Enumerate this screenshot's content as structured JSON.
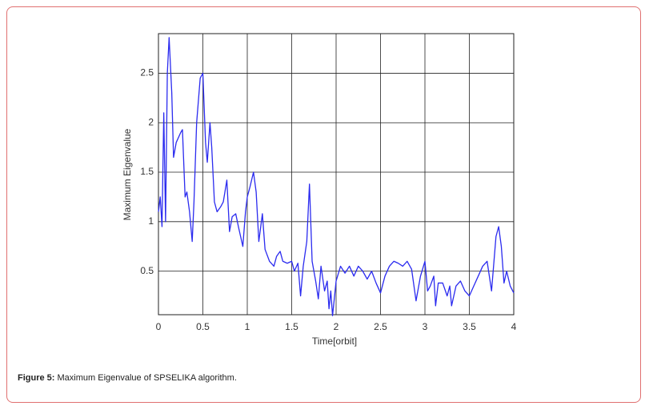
{
  "chart_data": {
    "type": "line",
    "xlabel": "Time[orbit]",
    "ylabel": "Maximum Eigenvalue",
    "xlim": [
      0,
      4
    ],
    "ylim": [
      0.06,
      2.9
    ],
    "xticks": [
      0,
      0.5,
      1,
      1.5,
      2,
      2.5,
      3,
      3.5,
      4
    ],
    "yticks": [
      0.5,
      1,
      1.5,
      2,
      2.5
    ],
    "grid": true,
    "color": "#2b2bef",
    "x": [
      0,
      0.02,
      0.04,
      0.06,
      0.08,
      0.1,
      0.12,
      0.15,
      0.17,
      0.2,
      0.25,
      0.27,
      0.3,
      0.32,
      0.35,
      0.38,
      0.4,
      0.43,
      0.47,
      0.5,
      0.53,
      0.55,
      0.58,
      0.6,
      0.63,
      0.66,
      0.7,
      0.73,
      0.77,
      0.8,
      0.83,
      0.87,
      0.9,
      0.95,
      0.98,
      1.0,
      1.03,
      1.07,
      1.1,
      1.13,
      1.17,
      1.2,
      1.25,
      1.3,
      1.33,
      1.37,
      1.4,
      1.45,
      1.5,
      1.53,
      1.57,
      1.6,
      1.63,
      1.67,
      1.7,
      1.73,
      1.77,
      1.8,
      1.83,
      1.87,
      1.9,
      1.92,
      1.94,
      1.96,
      2.0,
      2.05,
      2.1,
      2.15,
      2.2,
      2.25,
      2.3,
      2.35,
      2.4,
      2.45,
      2.5,
      2.55,
      2.6,
      2.65,
      2.7,
      2.75,
      2.8,
      2.85,
      2.9,
      2.95,
      3.0,
      3.03,
      3.06,
      3.1,
      3.12,
      3.15,
      3.2,
      3.25,
      3.28,
      3.3,
      3.35,
      3.4,
      3.45,
      3.5,
      3.55,
      3.6,
      3.65,
      3.7,
      3.75,
      3.8,
      3.83,
      3.86,
      3.89,
      3.92,
      3.96,
      4.0
    ],
    "values": [
      1.1,
      1.25,
      0.95,
      2.1,
      1.0,
      2.5,
      2.86,
      2.3,
      1.65,
      1.8,
      1.9,
      1.93,
      1.25,
      1.3,
      1.1,
      0.8,
      1.2,
      2.0,
      2.45,
      2.5,
      1.8,
      1.6,
      2.0,
      1.75,
      1.2,
      1.1,
      1.15,
      1.2,
      1.42,
      0.9,
      1.05,
      1.08,
      0.95,
      0.75,
      1.1,
      1.25,
      1.35,
      1.5,
      1.3,
      0.8,
      1.08,
      0.72,
      0.6,
      0.55,
      0.65,
      0.7,
      0.6,
      0.58,
      0.6,
      0.5,
      0.58,
      0.25,
      0.55,
      0.8,
      1.38,
      0.6,
      0.4,
      0.22,
      0.55,
      0.3,
      0.4,
      0.12,
      0.3,
      0.05,
      0.4,
      0.55,
      0.48,
      0.55,
      0.45,
      0.55,
      0.5,
      0.42,
      0.5,
      0.38,
      0.28,
      0.45,
      0.55,
      0.6,
      0.58,
      0.55,
      0.6,
      0.52,
      0.2,
      0.45,
      0.6,
      0.3,
      0.35,
      0.45,
      0.15,
      0.38,
      0.38,
      0.25,
      0.35,
      0.15,
      0.35,
      0.4,
      0.3,
      0.25,
      0.35,
      0.45,
      0.55,
      0.6,
      0.3,
      0.85,
      0.95,
      0.75,
      0.38,
      0.5,
      0.35,
      0.28
    ]
  },
  "caption": {
    "label": "Figure 5:",
    "text": "Maximum Eigenvalue of SPSELIKA algorithm."
  }
}
